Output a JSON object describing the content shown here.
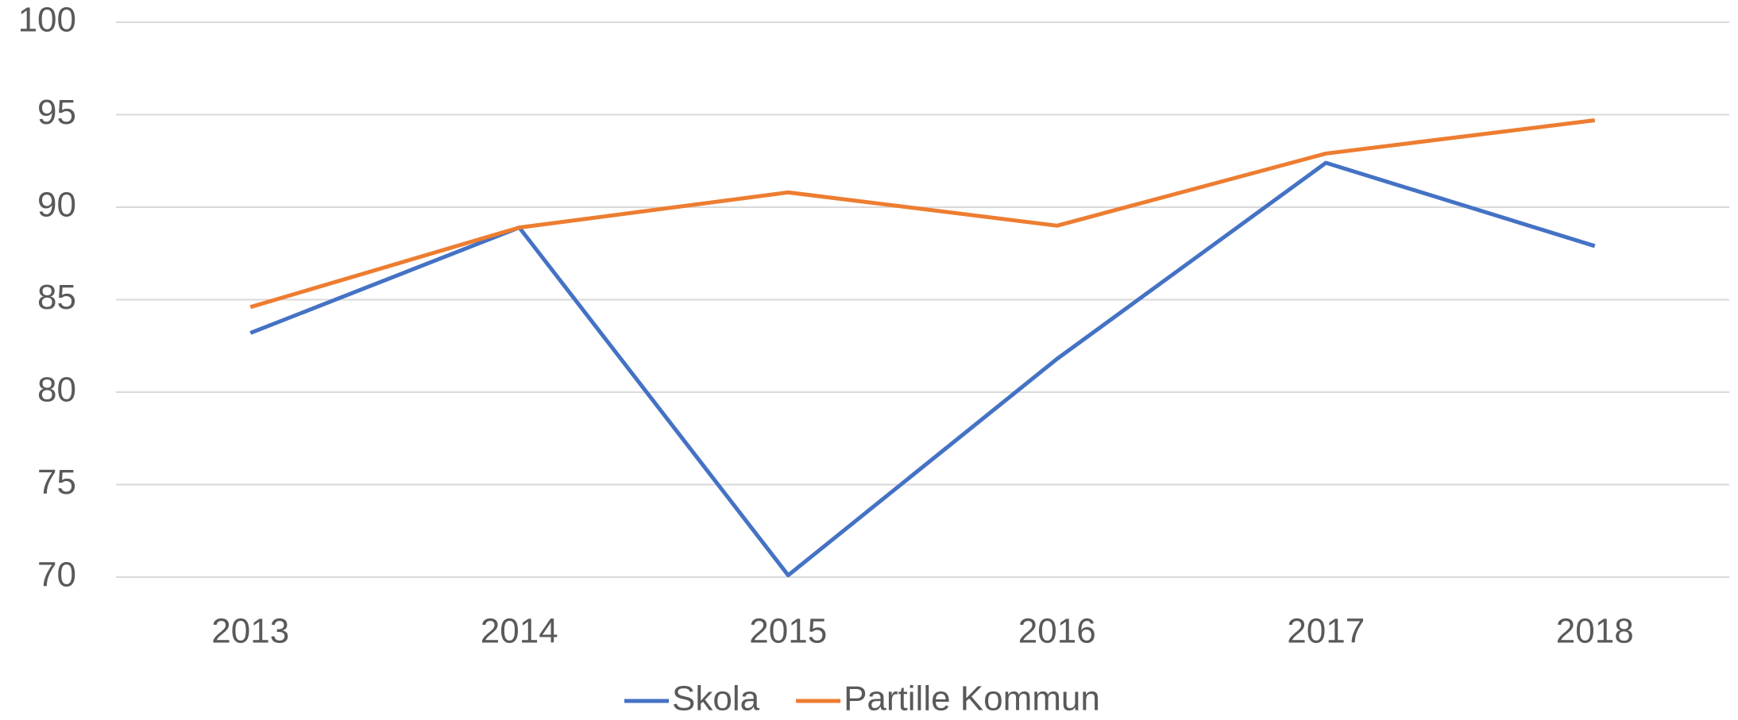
{
  "chart_data": {
    "type": "line",
    "categories": [
      "2013",
      "2014",
      "2015",
      "2016",
      "2017",
      "2018"
    ],
    "series": [
      {
        "name": "Skola",
        "color": "#4472c4",
        "values": [
          83.2,
          88.9,
          70.1,
          81.8,
          92.4,
          87.9
        ]
      },
      {
        "name": "Partille Kommun",
        "color": "#ed7d31",
        "values": [
          84.6,
          88.9,
          90.8,
          89.0,
          92.9,
          94.7
        ]
      }
    ],
    "ylim": [
      70,
      100
    ],
    "yticks": [
      70,
      75,
      80,
      85,
      90,
      95,
      100
    ],
    "grid": true,
    "legend": "bottom"
  }
}
